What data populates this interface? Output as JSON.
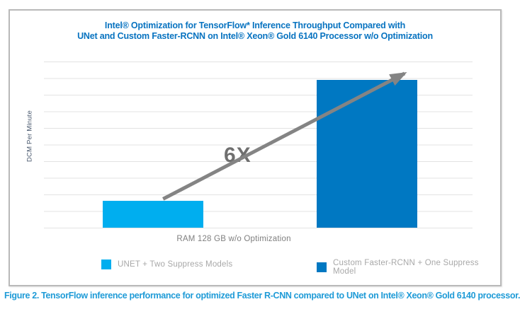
{
  "title": {
    "line1": "Intel® Optimization for TensorFlow* Inference Throughput Compared with",
    "line2": "UNet and Custom Faster-RCNN on Intel® Xeon® Gold 6140 Processor w/o Optimization"
  },
  "y_axis_label": "DCM Per Minute",
  "x_axis_label": "RAM 128 GB w/o Optimization",
  "annotation_text": "6X",
  "legend": [
    {
      "label": "UNET + Two Suppress Models",
      "color": "#00aeef"
    },
    {
      "label": "Custom Faster-RCNN + One Suppress Model",
      "color": "#0078c2"
    }
  ],
  "caption": "Figure 2. TensorFlow inference performance for optimized Faster R-CNN compared to UNet on Intel® Xeon® Gold 6140 processor.",
  "colors": {
    "title_blue": "#0873c0",
    "caption_blue": "#1f9bd7",
    "arrow_gray": "#848484",
    "annotation_gray": "#6f6f6f",
    "axis_text_gray": "#7f7f7f",
    "legend_text_gray": "#a8a8a8",
    "gridline_gray": "#e3e3e3",
    "y_label_slate": "#44546a"
  },
  "chart_data": {
    "type": "bar",
    "title": "Intel® Optimization for TensorFlow* Inference Throughput Compared with UNet and Custom Faster-RCNN on Intel® Xeon® Gold 6140 Processor w/o Optimization",
    "categories": [
      "RAM 128 GB w/o Optimization"
    ],
    "series": [
      {
        "name": "UNET + Two Suppress Models",
        "value": 1.6,
        "color": "#00aeef"
      },
      {
        "name": "Custom Faster-RCNN + One Suppress Model",
        "value": 8.9,
        "color": "#0078c2"
      }
    ],
    "xlabel": "RAM 128 GB w/o Optimization",
    "ylabel": "DCM Per Minute",
    "ylim": [
      0,
      10
    ],
    "gridline_interval": 1,
    "grid": true,
    "y_tick_labels_visible": false,
    "annotation": "6X",
    "legend_position": "bottom"
  }
}
